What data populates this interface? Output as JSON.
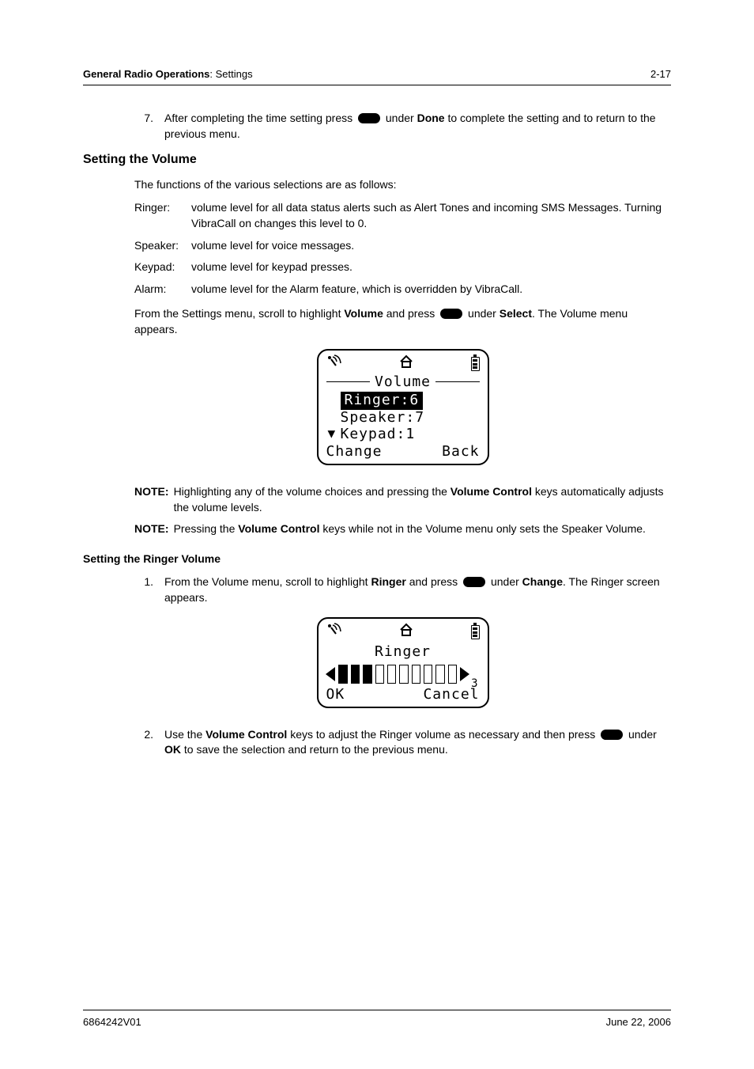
{
  "header": {
    "section_bold": "General Radio Operations",
    "section_rest": ": Settings",
    "page_no": "2-17"
  },
  "continuing_step": {
    "num": "7.",
    "pre": "After completing the time setting press ",
    "mid_bold": "Done",
    "mid_pre": " under ",
    "post": " to complete the setting and to return to the previous menu."
  },
  "h3_volume": "Setting the Volume",
  "volume_intro": "The functions of the various selections are as follows:",
  "defs": [
    {
      "term": "Ringer:",
      "def": "volume level for all data status alerts such as Alert Tones and incoming SMS Messages. Turning VibraCall on changes this level to 0."
    },
    {
      "term": "Speaker:",
      "def": "volume level for voice messages."
    },
    {
      "term": "Keypad:",
      "def": "volume level for keypad presses."
    },
    {
      "term": "Alarm:",
      "def": "volume level for the Alarm feature, which is overridden by VibraCall."
    }
  ],
  "volume_nav": {
    "pre": "From the Settings menu, scroll to highlight ",
    "bold1": "Volume",
    "mid1": " and press ",
    "mid2": " under ",
    "bold2": "Select",
    "post": ". The Volume menu appears."
  },
  "lcd_volume": {
    "title": "Volume",
    "lines": [
      {
        "text": "Ringer:6",
        "highlighted": true
      },
      {
        "text": "Speaker:7",
        "highlighted": false
      },
      {
        "text": "Keypad:1",
        "highlighted": false
      }
    ],
    "left_soft": "Change",
    "right_soft": "Back"
  },
  "note1": {
    "label": "NOTE:",
    "pre": "Highlighting any of the volume choices and pressing the ",
    "bold": "Volume Control",
    "post": " keys automatically adjusts the volume levels."
  },
  "note2": {
    "label": "NOTE:",
    "pre": "Pressing the ",
    "bold": "Volume Control",
    "post": " keys while not in the Volume menu only sets the Speaker Volume."
  },
  "h4_ringer": "Setting the Ringer Volume",
  "ringer_step1": {
    "num": "1.",
    "pre": "From the Volume menu, scroll to highlight ",
    "bold1": "Ringer",
    "mid1": " and press ",
    "mid2": " under ",
    "bold2": "Change",
    "post": ". The Ringer screen appears."
  },
  "lcd_ringer": {
    "title": "Ringer",
    "value_label": "3",
    "filled_bars": 3,
    "total_bars": 10,
    "left_soft": "OK",
    "right_soft": "Cancel"
  },
  "ringer_step2": {
    "num": "2.",
    "pre": "Use the ",
    "bold1": "Volume Control",
    "mid1": " keys to adjust the Ringer volume as necessary and then press ",
    "mid2": " under ",
    "bold2": "OK",
    "post": " to save the selection and return to the previous menu."
  },
  "footer": {
    "docnum": "6864242V01",
    "date": "June 22, 2006"
  }
}
